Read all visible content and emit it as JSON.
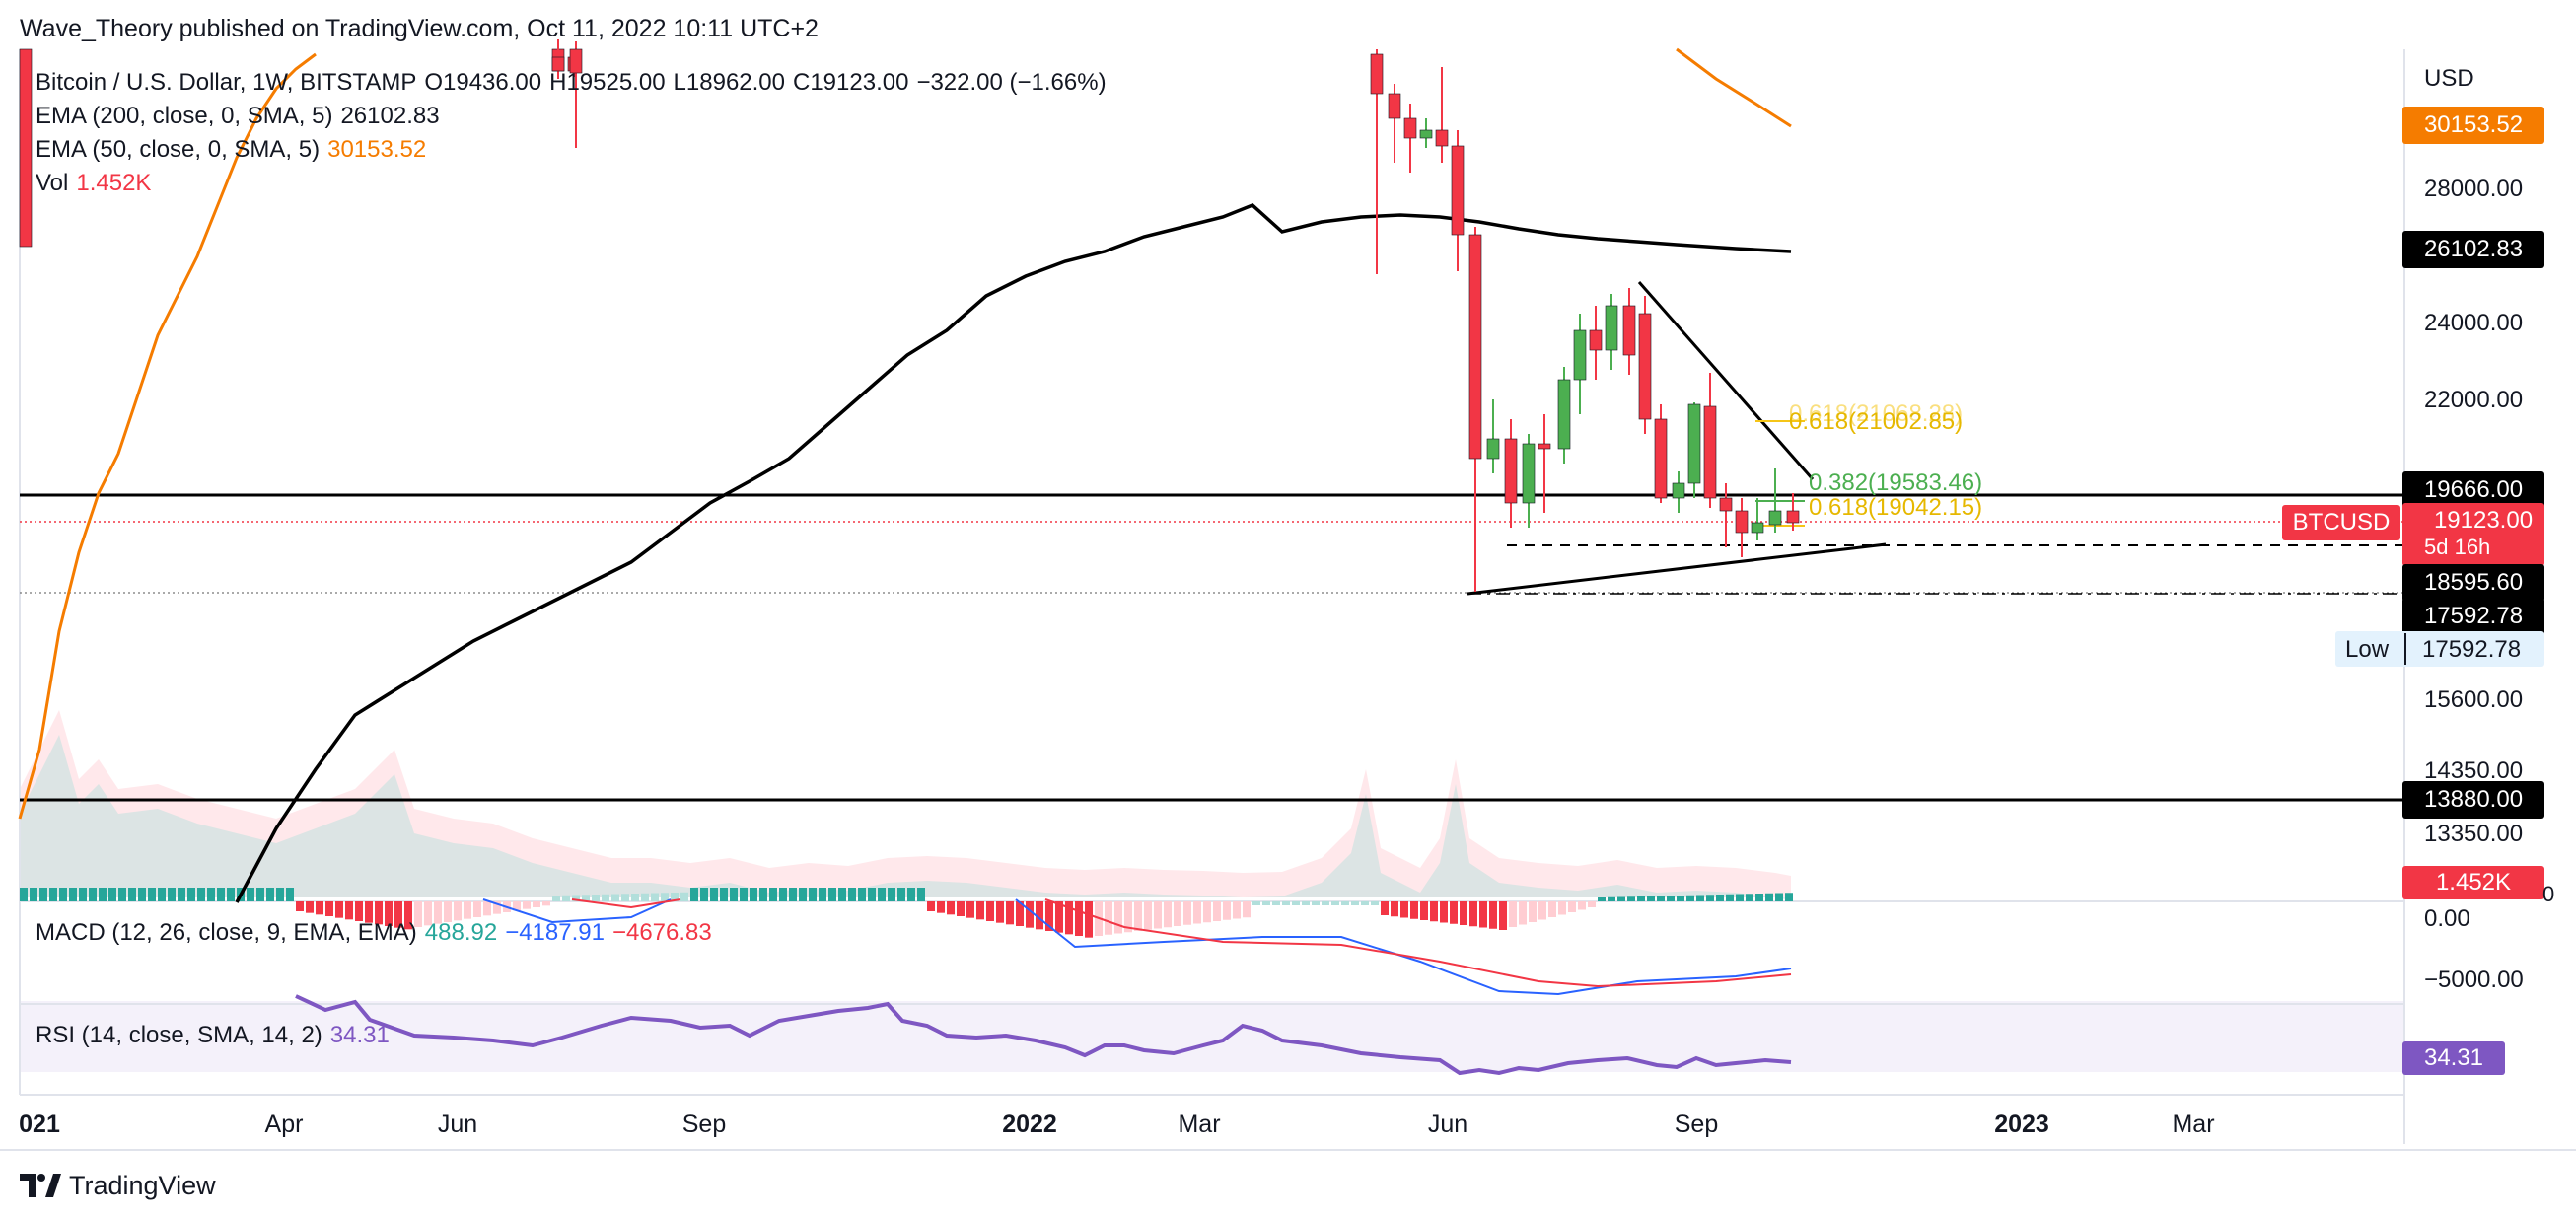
{
  "header": {
    "publisher": "Wave_Theory published on TradingView.com, Oct 11, 2022 10:11 UTC+2"
  },
  "legend": {
    "symbol": "Bitcoin / U.S. Dollar, 1W, BITSTAMP",
    "open": "O19436.00",
    "high": "H19525.00",
    "low": "L18962.00",
    "close": "C19123.00",
    "change": "−322.00 (−1.66%)",
    "ema200_label": "EMA (200, close, 0, SMA, 5)",
    "ema200_value": "26102.83",
    "ema50_label": "EMA (50, close, 0, SMA, 5)",
    "ema50_value": "30153.52",
    "vol_label": "Vol",
    "vol_value": "1.452K"
  },
  "macd": {
    "label": "MACD (12, 26, close, 9, EMA, EMA)",
    "hist": "488.92",
    "macd": "−4187.91",
    "signal": "−4676.83"
  },
  "rsi": {
    "label": "RSI (14, close, SMA, 14, 2)",
    "value": "34.31"
  },
  "price_axis": {
    "currency": "USD",
    "ticks": [
      "28000.00",
      "24000.00",
      "22000.00",
      "15600.00",
      "14350.00",
      "13350.00"
    ],
    "label_ema50": "30153.52",
    "label_ema200": "26102.83",
    "label_resistance": "19666.00",
    "label_price": "19123.00",
    "label_countdown": "5d 16h",
    "label_18595": "18595.60",
    "label_17592": "17592.78",
    "label_low_title": "Low",
    "label_low_value": "17592.78",
    "label_support": "13880.00",
    "label_vol": "1.452K",
    "vol_zero": "0",
    "symbol_tag": "BTCUSD"
  },
  "macd_axis": {
    "ticks": [
      "0.00",
      "−5000.00"
    ]
  },
  "rsi_axis": {
    "label_value": "34.31"
  },
  "fib": {
    "f1": "0.618(21002.85)",
    "f1_overlap": "0.618(21068.28)",
    "f2": "0.382(19583.46)",
    "f3": "0.618(19042.15)"
  },
  "time_axis": {
    "ticks": [
      "021",
      "Apr",
      "Jun",
      "Sep",
      "2022",
      "Mar",
      "Jun",
      "Sep",
      "2023",
      "Mar"
    ]
  },
  "footer": {
    "brand": "TradingView"
  },
  "colors": {
    "up": "#4caf50",
    "down": "#f23645",
    "ema50": "#f57c00",
    "ema200": "#000000",
    "macd_line": "#2962ff",
    "signal_line": "#f23645",
    "rsi_line": "#7e57c2",
    "fib_618": "#f5c518",
    "fib_382": "#4caf50"
  }
}
